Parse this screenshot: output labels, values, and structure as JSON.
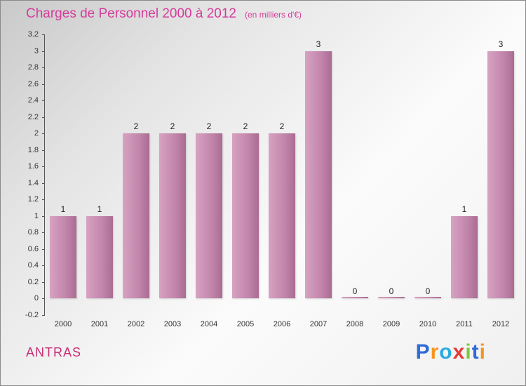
{
  "title": "Charges de Personnel 2000 à 2012",
  "subtitle": "(en milliers d'€)",
  "footer": {
    "name": "ANTRAS"
  },
  "logo": {
    "letters": [
      {
        "ch": "P",
        "color": "#2f6bd8"
      },
      {
        "ch": "r",
        "color": "#f7941d"
      },
      {
        "ch": "o",
        "color": "#29abe2"
      },
      {
        "ch": "x",
        "color": "#e43a3a"
      },
      {
        "ch": "i",
        "color": "#7ac943"
      },
      {
        "ch": "t",
        "color": "#2f6bd8"
      },
      {
        "ch": "i",
        "color": "#f7941d"
      }
    ]
  },
  "colors": {
    "title": "#d63a9a",
    "brand": "#c72b74",
    "bar_light": "#d7a2c1",
    "bar_mid": "#c285ab",
    "bar_dark": "#aa6c92",
    "axis": "#555555",
    "tick_text": "#333333",
    "value_label": "#222222"
  },
  "chart_data": {
    "type": "bar",
    "title": "Charges de Personnel 2000 à 2012",
    "subtitle": "(en milliers d'€)",
    "categories": [
      "2000",
      "2001",
      "2002",
      "2003",
      "2004",
      "2005",
      "2006",
      "2007",
      "2008",
      "2009",
      "2010",
      "2011",
      "2012"
    ],
    "values": [
      1,
      1,
      2,
      2,
      2,
      2,
      2,
      3,
      0,
      0,
      0,
      1,
      3
    ],
    "xlabel": "",
    "ylabel": "",
    "ylim": [
      -0.2,
      3.2
    ],
    "y_ticks": [
      "3.2",
      "3",
      "2.8",
      "2.6",
      "2.4",
      "2.2",
      "2",
      "1.8",
      "1.6",
      "1.4",
      "1.2",
      "1",
      "0.8",
      "0.6",
      "0.4",
      "0.2",
      "0",
      "-0.2"
    ],
    "grid": false,
    "legend": false,
    "value_labels": true
  }
}
